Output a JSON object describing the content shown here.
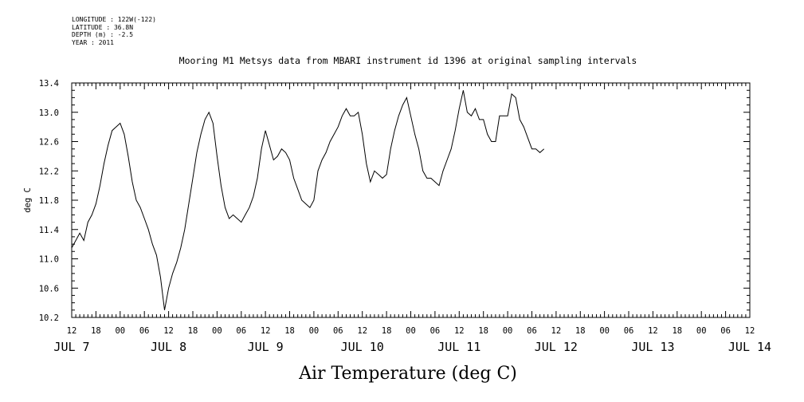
{
  "header": {
    "longitude": "LONGITUDE : 122W(-122)",
    "latitude": "LATITUDE : 36.8N",
    "depth": "DEPTH (m) : -2.5",
    "year": "YEAR : 2011"
  },
  "chart_data": {
    "type": "line",
    "title": "Mooring M1 Metsys data from MBARI instrument id 1396 at original sampling intervals",
    "xlabel": "Air Temperature (deg C)",
    "ylabel": "deg C",
    "ylim": [
      10.2,
      13.4
    ],
    "yticks": [
      "10.2",
      "10.6",
      "11.0",
      "11.4",
      "11.8",
      "12.2",
      "12.6",
      "13.0",
      "13.4"
    ],
    "xlim_hours": [
      0,
      168
    ],
    "x_tick_labels": [
      "12",
      "18",
      "00",
      "06",
      "12",
      "18",
      "00",
      "06",
      "12",
      "18",
      "00",
      "06",
      "12",
      "18",
      "00",
      "06",
      "12",
      "18",
      "00",
      "06",
      "12",
      "18",
      "00",
      "06",
      "12",
      "18",
      "00",
      "06",
      "12"
    ],
    "day_labels": [
      {
        "label": "JUL  7",
        "hour": 0
      },
      {
        "label": "JUL  8",
        "hour": 24
      },
      {
        "label": "JUL  9",
        "hour": 48
      },
      {
        "label": "JUL 10",
        "hour": 72
      },
      {
        "label": "JUL 11",
        "hour": 96
      },
      {
        "label": "JUL 12",
        "hour": 120
      },
      {
        "label": "JUL 13",
        "hour": 144
      },
      {
        "label": "JUL 14",
        "hour": 168
      }
    ],
    "grid": false,
    "series": [
      {
        "values": [
          [
            0,
            11.15
          ],
          [
            1,
            11.25
          ],
          [
            2,
            11.35
          ],
          [
            3,
            11.25
          ],
          [
            4,
            11.5
          ],
          [
            5,
            11.6
          ],
          [
            6,
            11.75
          ],
          [
            7,
            12.0
          ],
          [
            8,
            12.3
          ],
          [
            9,
            12.55
          ],
          [
            10,
            12.75
          ],
          [
            11,
            12.8
          ],
          [
            12,
            12.85
          ],
          [
            13,
            12.7
          ],
          [
            14,
            12.4
          ],
          [
            15,
            12.05
          ],
          [
            16,
            11.8
          ],
          [
            17,
            11.7
          ],
          [
            18,
            11.55
          ],
          [
            19,
            11.4
          ],
          [
            20,
            11.2
          ],
          [
            21,
            11.05
          ],
          [
            22,
            10.75
          ],
          [
            23,
            10.3
          ],
          [
            24,
            10.6
          ],
          [
            25,
            10.8
          ],
          [
            26,
            10.95
          ],
          [
            27,
            11.15
          ],
          [
            28,
            11.4
          ],
          [
            29,
            11.75
          ],
          [
            30,
            12.1
          ],
          [
            31,
            12.45
          ],
          [
            32,
            12.7
          ],
          [
            33,
            12.9
          ],
          [
            34,
            13.0
          ],
          [
            35,
            12.85
          ],
          [
            36,
            12.4
          ],
          [
            37,
            12.0
          ],
          [
            38,
            11.7
          ],
          [
            39,
            11.55
          ],
          [
            40,
            11.6
          ],
          [
            41,
            11.55
          ],
          [
            42,
            11.5
          ],
          [
            43,
            11.6
          ],
          [
            44,
            11.7
          ],
          [
            45,
            11.85
          ],
          [
            46,
            12.1
          ],
          [
            47,
            12.5
          ],
          [
            48,
            12.75
          ],
          [
            49,
            12.55
          ],
          [
            50,
            12.35
          ],
          [
            51,
            12.4
          ],
          [
            52,
            12.5
          ],
          [
            53,
            12.45
          ],
          [
            54,
            12.35
          ],
          [
            55,
            12.1
          ],
          [
            56,
            11.95
          ],
          [
            57,
            11.8
          ],
          [
            58,
            11.75
          ],
          [
            59,
            11.7
          ],
          [
            60,
            11.8
          ],
          [
            61,
            12.2
          ],
          [
            62,
            12.35
          ],
          [
            63,
            12.45
          ],
          [
            64,
            12.6
          ],
          [
            65,
            12.7
          ],
          [
            66,
            12.8
          ],
          [
            67,
            12.95
          ],
          [
            68,
            13.05
          ],
          [
            69,
            12.95
          ],
          [
            70,
            12.95
          ],
          [
            71,
            13.0
          ],
          [
            72,
            12.7
          ],
          [
            73,
            12.3
          ],
          [
            74,
            12.05
          ],
          [
            75,
            12.2
          ],
          [
            76,
            12.15
          ],
          [
            77,
            12.1
          ],
          [
            78,
            12.15
          ],
          [
            79,
            12.5
          ],
          [
            80,
            12.75
          ],
          [
            81,
            12.95
          ],
          [
            82,
            13.1
          ],
          [
            83,
            13.2
          ],
          [
            84,
            12.95
          ],
          [
            85,
            12.7
          ],
          [
            86,
            12.5
          ],
          [
            87,
            12.2
          ],
          [
            88,
            12.1
          ],
          [
            89,
            12.1
          ],
          [
            90,
            12.05
          ],
          [
            91,
            12.0
          ],
          [
            92,
            12.2
          ],
          [
            93,
            12.35
          ],
          [
            94,
            12.5
          ],
          [
            95,
            12.75
          ],
          [
            96,
            13.05
          ],
          [
            97,
            13.3
          ],
          [
            98,
            13.0
          ],
          [
            99,
            12.95
          ],
          [
            100,
            13.05
          ],
          [
            101,
            12.9
          ],
          [
            102,
            12.9
          ],
          [
            103,
            12.7
          ],
          [
            104,
            12.6
          ],
          [
            105,
            12.6
          ],
          [
            106,
            12.95
          ],
          [
            107,
            12.95
          ],
          [
            108,
            12.95
          ],
          [
            109,
            13.25
          ],
          [
            110,
            13.2
          ],
          [
            111,
            12.9
          ],
          [
            112,
            12.8
          ],
          [
            113,
            12.65
          ],
          [
            114,
            12.5
          ],
          [
            115,
            12.5
          ],
          [
            116,
            12.45
          ],
          [
            117,
            12.5
          ]
        ]
      }
    ]
  }
}
